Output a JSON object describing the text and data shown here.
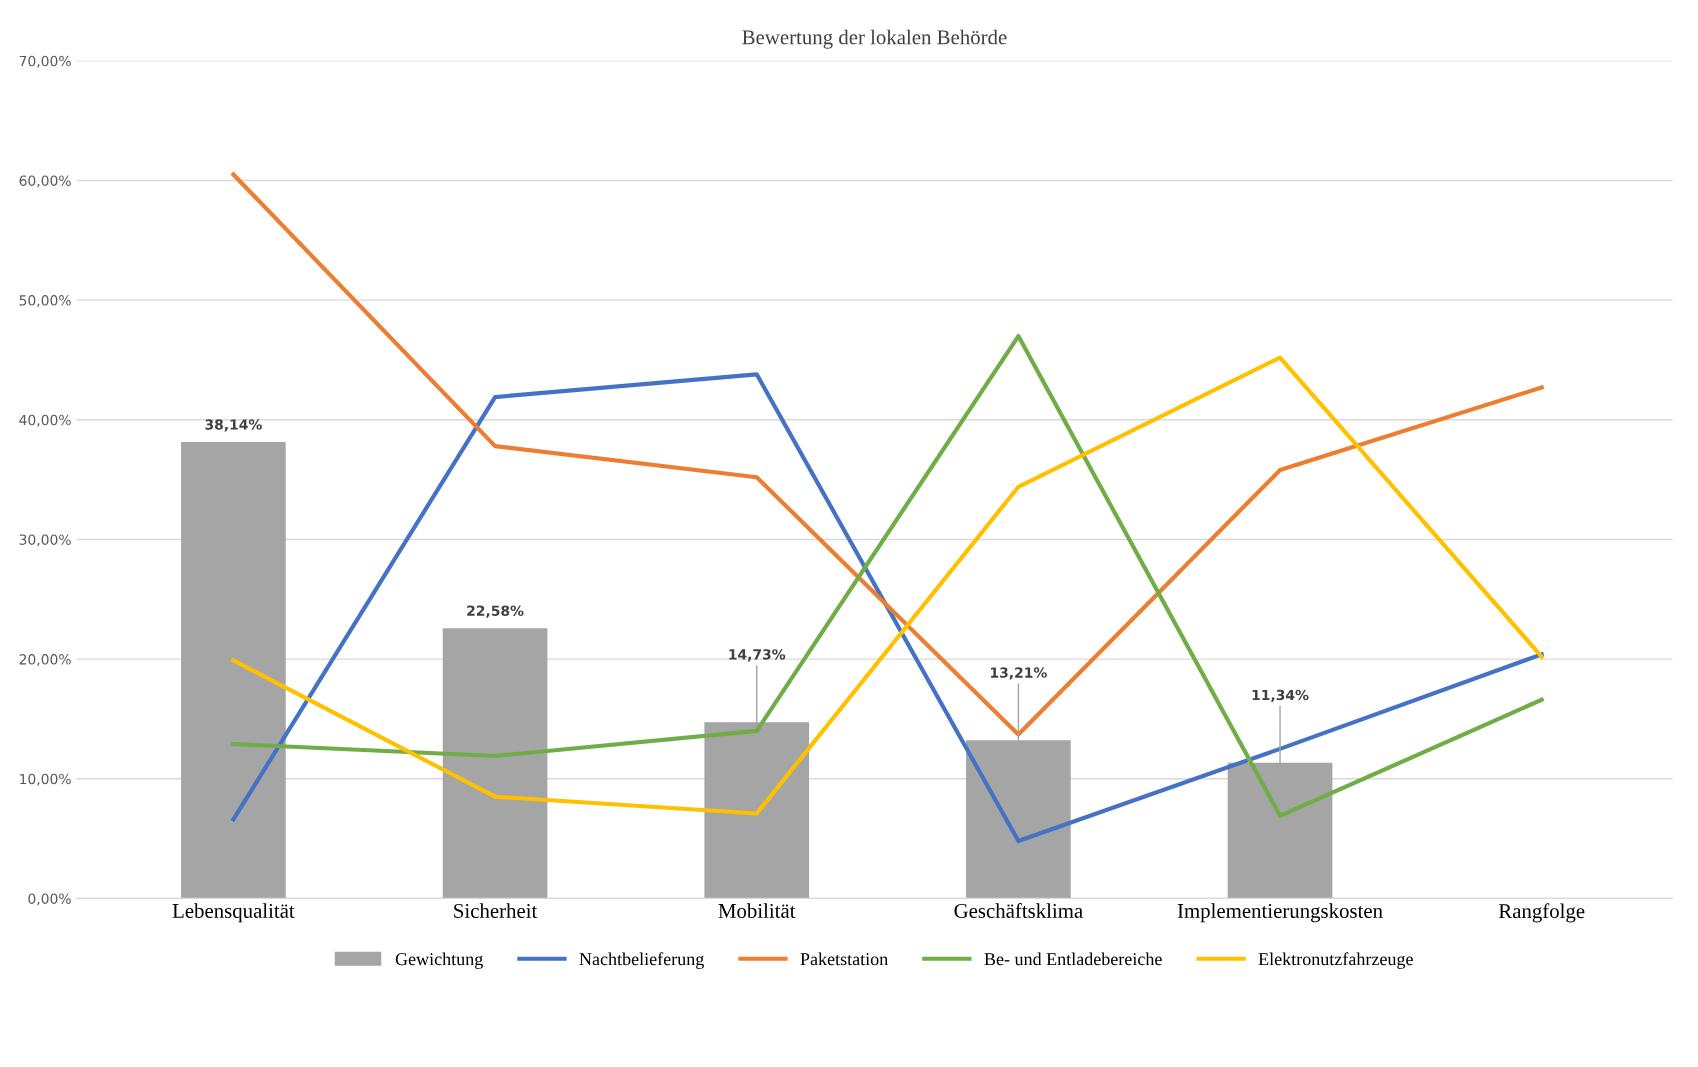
{
  "chart_data": {
    "type": "bar",
    "title": "Bewertung der lokalen Behörde",
    "categories": [
      "Lebensqualität",
      "Sicherheit",
      "Mobilität",
      "Geschäftsklima",
      "Implementierungskosten",
      "Rangfolge"
    ],
    "series": [
      {
        "name": "Gewichtung",
        "color": "#a5a5a5",
        "values": [
          38.14,
          22.58,
          14.73,
          13.21,
          11.34,
          null
        ],
        "value_labels": [
          "38,14%",
          "22,58%",
          "14,73%",
          "13,21%",
          "11,34%",
          null
        ]
      },
      {
        "name": "Nachtbelieferung",
        "type": "line",
        "color": "#4472c4",
        "values": [
          6.6,
          41.9,
          43.8,
          4.8,
          12.5,
          20.4
        ]
      },
      {
        "name": "Paketstation",
        "type": "line",
        "color": "#ed7d31",
        "values": [
          60.5,
          37.8,
          35.2,
          13.7,
          35.8,
          42.7
        ]
      },
      {
        "name": "Be- und Entladebereiche",
        "type": "line",
        "color": "#70ad47",
        "values": [
          12.9,
          11.9,
          14.0,
          47.0,
          6.9,
          16.6
        ]
      },
      {
        "name": "Elektronutzfahrzeuge",
        "type": "line",
        "color": "#ffc000",
        "values": [
          19.9,
          8.5,
          7.1,
          34.4,
          45.2,
          20.2
        ]
      }
    ],
    "ylim": [
      0,
      70
    ],
    "yticks": [
      {
        "value": 0,
        "label": "0,00%"
      },
      {
        "value": 10,
        "label": "10,00%"
      },
      {
        "value": 20,
        "label": "20,00%"
      },
      {
        "value": 30,
        "label": "30,00%"
      },
      {
        "value": 40,
        "label": "40,00%"
      },
      {
        "value": 50,
        "label": "50,00%"
      },
      {
        "value": 60,
        "label": "60,00%"
      },
      {
        "value": 70,
        "label": "70,00%"
      }
    ],
    "grid": "y",
    "legend": "bottom",
    "line_style": "solid"
  }
}
